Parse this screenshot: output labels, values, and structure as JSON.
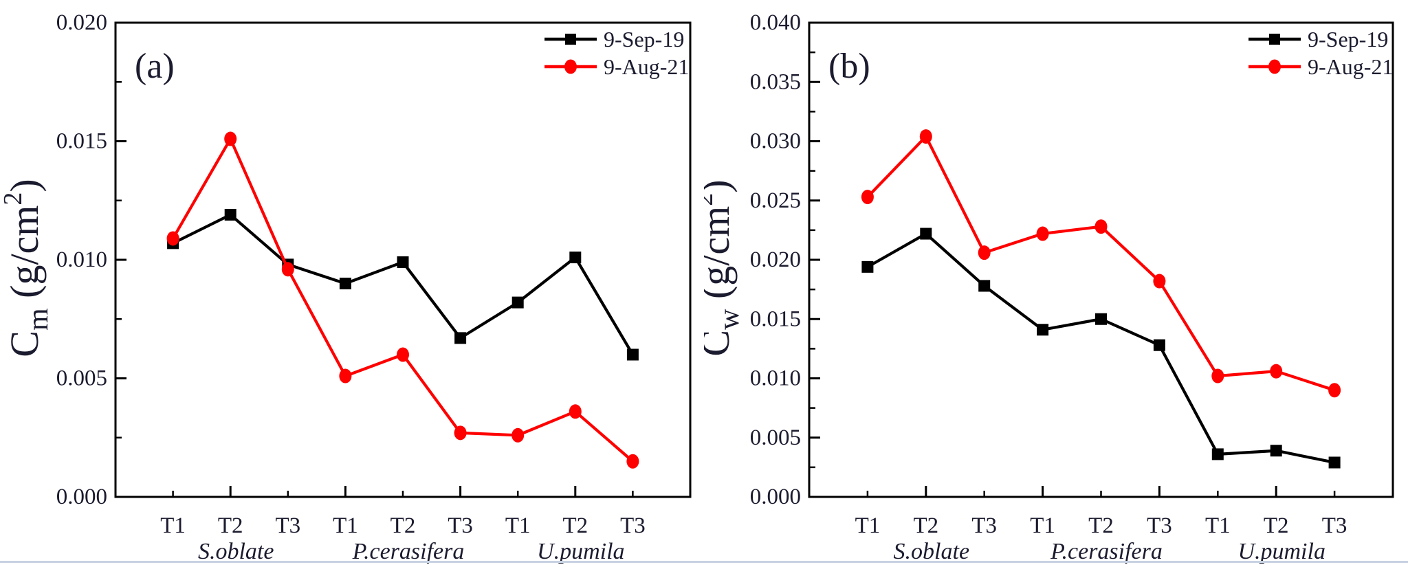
{
  "page": {
    "background": "#ffffff",
    "bottom_edge_color": "#c7d2e2",
    "text_color": "#1b1b2f",
    "axis_color": "#000000"
  },
  "chart_data": [
    {
      "type": "line",
      "panel_label": "(a)",
      "ylabel": {
        "letter": "C",
        "subscript": "m",
        "unit_prefix": " (g/cm",
        "unit_sup": "2",
        "unit_suffix": ")"
      },
      "ylim": [
        0.0,
        0.02
      ],
      "ytick_step": 0.005,
      "ytick_labels": [
        "0.000",
        "0.005",
        "0.010",
        "0.015",
        "0.020"
      ],
      "categories": [
        "T1",
        "T2",
        "T3",
        "T1",
        "T2",
        "T3",
        "T1",
        "T2",
        "T3"
      ],
      "group_labels": [
        "S.oblate",
        "P.cerasifera",
        "U.pumila"
      ],
      "group_center_index": [
        1,
        4,
        7
      ],
      "grid": false,
      "legend_position": "top-right",
      "series": [
        {
          "name": "9-Sep-19",
          "color": "#000000",
          "marker": "square",
          "values": [
            0.0107,
            0.0119,
            0.0098,
            0.009,
            0.0099,
            0.0067,
            0.0082,
            0.0101,
            0.006
          ]
        },
        {
          "name": "9-Aug-21",
          "color": "#fe0000",
          "marker": "circle",
          "values": [
            0.0109,
            0.0151,
            0.0096,
            0.0051,
            0.006,
            0.0027,
            0.0026,
            0.0036,
            0.0015
          ]
        }
      ]
    },
    {
      "type": "line",
      "panel_label": "(b)",
      "ylabel": {
        "letter": "C",
        "subscript": "w",
        "unit_prefix": " (g/cm",
        "unit_sup": "2",
        "unit_suffix": ")"
      },
      "ylim": [
        0.0,
        0.04
      ],
      "ytick_step": 0.005,
      "ytick_labels": [
        "0.000",
        "0.005",
        "0.010",
        "0.015",
        "0.020",
        "0.025",
        "0.030",
        "0.035",
        "0.040"
      ],
      "categories": [
        "T1",
        "T2",
        "T3",
        "T1",
        "T2",
        "T3",
        "T1",
        "T2",
        "T3"
      ],
      "group_labels": [
        "S.oblate",
        "P.cerasifera",
        "U.pumila"
      ],
      "group_center_index": [
        1,
        4,
        7
      ],
      "grid": false,
      "legend_position": "top-right",
      "series": [
        {
          "name": "9-Sep-19",
          "color": "#000000",
          "marker": "square",
          "values": [
            0.0194,
            0.0222,
            0.0178,
            0.0141,
            0.015,
            0.0128,
            0.0036,
            0.0039,
            0.0029
          ]
        },
        {
          "name": "9-Aug-21",
          "color": "#fe0000",
          "marker": "circle",
          "values": [
            0.0253,
            0.0304,
            0.0206,
            0.0222,
            0.0228,
            0.0182,
            0.0102,
            0.0106,
            0.009
          ]
        }
      ]
    }
  ]
}
